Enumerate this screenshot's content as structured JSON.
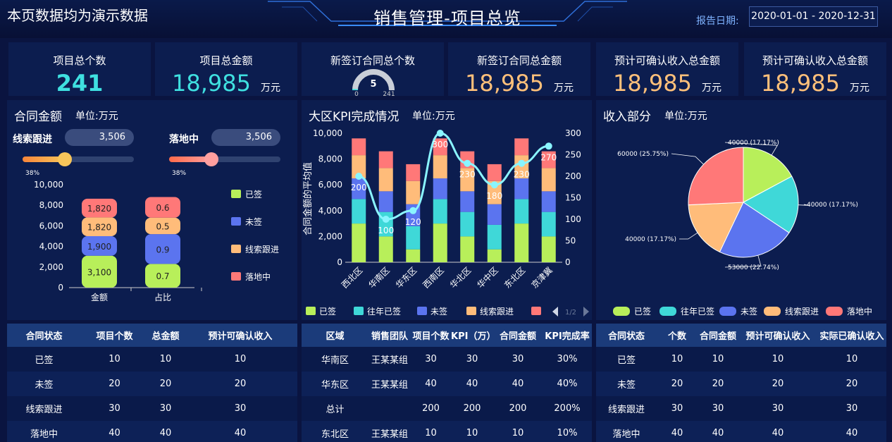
{
  "header": {
    "notice": "本页数据均为演示数据",
    "title": "销售管理-项目总览",
    "report_label": "报告日期:",
    "date_range": "2020-01-01 - 2020-12-31"
  },
  "kpis": [
    {
      "label": "项目总个数",
      "value": "241",
      "unit": "",
      "color": "#3fe0e0"
    },
    {
      "label": "项目总金额",
      "value": "18,985",
      "unit": "万元",
      "color": "#3fe0e0"
    },
    {
      "label": "新签订合同总个数",
      "gauge_value": "5",
      "gauge_min": "0",
      "gauge_max": "241",
      "gauge_fraction": 0.02
    },
    {
      "label": "新签订合同总金额",
      "value": "18,985",
      "unit": "万元",
      "color": "#ffc07a"
    },
    {
      "label": "预计可确认收入总金额",
      "value": "18,985",
      "unit": "万元",
      "color": "#ffc07a"
    },
    {
      "label": "预计可确认收入总金额",
      "value": "18,985",
      "unit": "万元",
      "color": "#ffc07a"
    }
  ],
  "contract_panel": {
    "title": "合同金额",
    "unit": "单位:万元",
    "slider1": {
      "label": "线索跟进",
      "value": "3,506",
      "percent": "38%",
      "fraction": 0.38,
      "color": "#f8c55a"
    },
    "slider2": {
      "label": "落地中",
      "value": "3,506",
      "percent": "38%",
      "fraction": 0.38,
      "color": "#ff8f8f"
    }
  },
  "kpi_panel": {
    "title": "大区KPI完成情况",
    "unit": "单位:万元"
  },
  "income_panel": {
    "title": "收入部分",
    "unit": "单位:万元"
  },
  "chart_data": [
    {
      "type": "bar",
      "stacked": true,
      "categories": [
        "金额",
        "占比"
      ],
      "ylim": [
        0,
        10000
      ],
      "yticks": [
        "0",
        "2,000",
        "4,000",
        "6,000",
        "8,000",
        "10,000"
      ],
      "series": [
        {
          "name": "已签",
          "color": "#b8ef5a",
          "values": [
            3100,
            2300
          ],
          "labels": [
            "3,100",
            "0.7"
          ]
        },
        {
          "name": "未签",
          "color": "#5b74ef",
          "values": [
            1900,
            2900
          ],
          "labels": [
            "1,900",
            "0.9"
          ]
        },
        {
          "name": "线索跟进",
          "color": "#ffbc7a",
          "values": [
            1820,
            1600
          ],
          "labels": [
            "1,820",
            "0.5"
          ]
        },
        {
          "name": "落地中",
          "color": "#ff7878",
          "values": [
            1820,
            2000
          ],
          "labels": [
            "1,820",
            "0.6"
          ]
        }
      ]
    },
    {
      "type": "bar",
      "stacked": true,
      "categories": [
        "西北区",
        "华南区",
        "华东区",
        "西南区",
        "华北区",
        "华中区",
        "东北区",
        "京津冀"
      ],
      "ylabel": "合同金额的平均值",
      "ylim": [
        0,
        10000
      ],
      "y2lim": [
        0,
        300
      ],
      "yticks": [
        "0",
        "2,000",
        "4,000",
        "6,000",
        "8,000",
        "10,000"
      ],
      "y2ticks": [
        "0",
        "50",
        "100",
        "150",
        "200",
        "250",
        "300"
      ],
      "series": [
        {
          "name": "已签",
          "color": "#b8ef5a",
          "values": [
            3000,
            2000,
            1000,
            3000,
            2000,
            1000,
            3000,
            2000
          ]
        },
        {
          "name": "往年已签",
          "color": "#3fd8d8",
          "values": [
            1900,
            1900,
            1800,
            1900,
            1900,
            1900,
            1900,
            1900
          ]
        },
        {
          "name": "未签",
          "color": "#5b74ef",
          "values": [
            1600,
            1600,
            1700,
            1600,
            1600,
            1600,
            1600,
            1600
          ]
        },
        {
          "name": "线索跟进",
          "color": "#ffbc7a",
          "values": [
            1800,
            1800,
            1800,
            1800,
            1800,
            1800,
            1800,
            1800
          ]
        },
        {
          "name": "落地中",
          "color": "#ff7878",
          "values": [
            1300,
            1300,
            1300,
            1300,
            1300,
            1300,
            1300,
            1300
          ]
        }
      ],
      "line": {
        "color": "#8af5ff",
        "values": [
          200,
          100,
          120,
          300,
          230,
          180,
          230,
          270
        ],
        "labels": [
          "200",
          "100",
          "120",
          "300",
          "230",
          "180",
          "230",
          "270"
        ]
      },
      "legend_page": "1/2"
    },
    {
      "type": "pie",
      "slices": [
        {
          "name": "已签",
          "value": 40000,
          "label": "40000 (17.17%)",
          "color": "#b8ef5a"
        },
        {
          "name": "往年已签",
          "value": 40000,
          "label": "40000 (17.17%)",
          "color": "#3fd8d8"
        },
        {
          "name": "未签",
          "value": 53000,
          "label": "53000 (22.74%)",
          "color": "#5b74ef"
        },
        {
          "name": "线索跟进",
          "value": 40000,
          "label": "40000 (17.17%)",
          "color": "#ffbc7a"
        },
        {
          "name": "落地中",
          "value": 60000,
          "label": "60000 (25.75%)",
          "color": "#ff7878"
        }
      ]
    }
  ],
  "table1": {
    "headers": [
      "合同状态",
      "项目个数",
      "总金额",
      "预计可确认收入"
    ],
    "rows": [
      [
        "已签",
        "10",
        "10",
        "10"
      ],
      [
        "未签",
        "20",
        "20",
        "20"
      ],
      [
        "线索跟进",
        "30",
        "30",
        "30"
      ],
      [
        "落地中",
        "40",
        "40",
        "40"
      ]
    ]
  },
  "table2": {
    "headers": [
      "区域",
      "销售团队",
      "项目个数",
      "KPI（万）",
      "合同金额",
      "KPI完成率"
    ],
    "rows": [
      [
        "华南区",
        "王某某组",
        "30",
        "30",
        "30",
        "30%"
      ],
      [
        "华东区",
        "王某某组",
        "40",
        "40",
        "40",
        "40%"
      ],
      [
        "总计",
        "",
        "200",
        "200",
        "200",
        "200%"
      ],
      [
        "东北区",
        "王某某组",
        "10",
        "10",
        "10",
        "10%"
      ]
    ]
  },
  "table3": {
    "headers": [
      "合同状态",
      "个数",
      "合同金额",
      "预计可确认收入",
      "实际已确认收入"
    ],
    "rows": [
      [
        "已签",
        "10",
        "10",
        "10",
        "10"
      ],
      [
        "未签",
        "20",
        "20",
        "20",
        "20"
      ],
      [
        "线索跟进",
        "30",
        "30",
        "30",
        "30"
      ],
      [
        "落地中",
        "40",
        "40",
        "40",
        "40"
      ]
    ]
  }
}
